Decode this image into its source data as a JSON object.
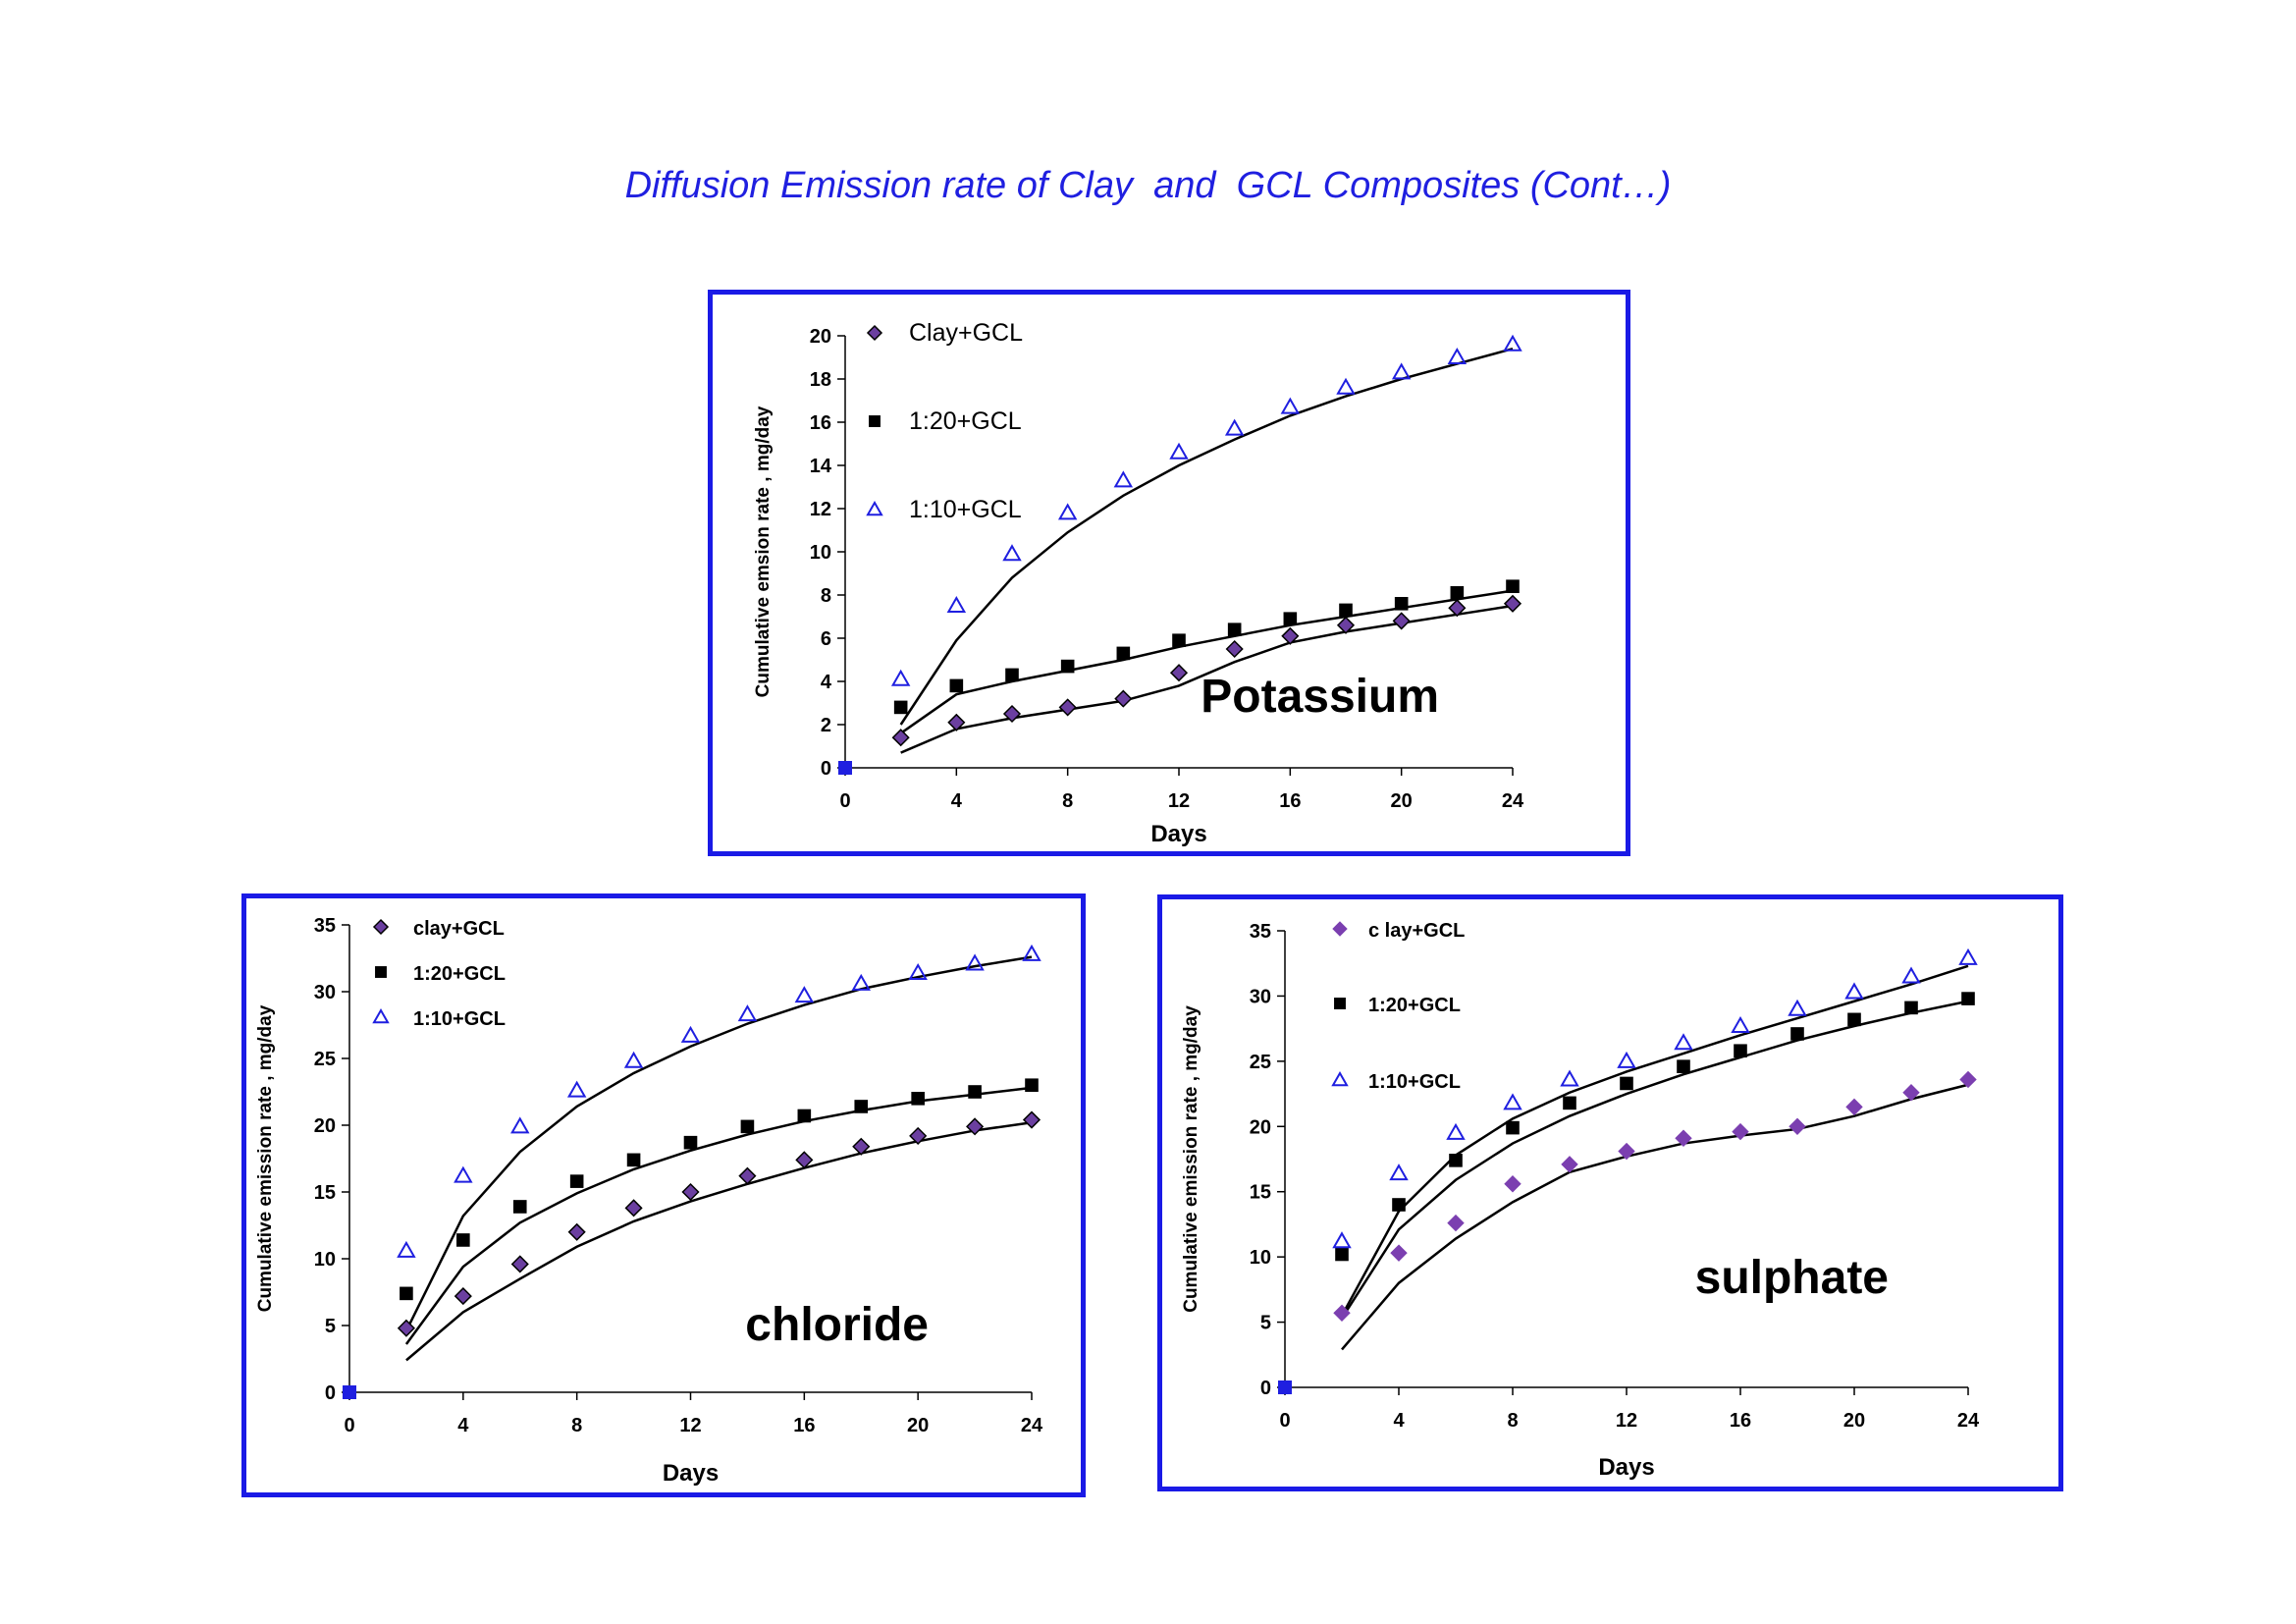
{
  "page": {
    "title": "Diffusion Emission rate of Clay  and  GCL Composites (Cont…)"
  },
  "colors": {
    "frame": "#1a1ae6",
    "clay": "#6b3fa0",
    "r120": "#000000",
    "r110": "#1f1fe0",
    "fit_line": "#000000"
  },
  "chart_data": [
    {
      "type": "scatter",
      "title": "Potassium",
      "xlabel": "Days",
      "ylabel": "Cumulative emsion rate , mg/day",
      "xlim": [
        0,
        24
      ],
      "ylim": [
        0,
        20
      ],
      "xticks": [
        0,
        4,
        8,
        12,
        16,
        20,
        24
      ],
      "yticks": [
        0,
        2,
        4,
        6,
        8,
        10,
        12,
        14,
        16,
        18,
        20
      ],
      "legend": "top-left, stacked",
      "series": [
        {
          "name": "Clay+GCL",
          "marker": "diamond",
          "color": "#6b3fa0",
          "x": [
            0,
            2,
            4,
            6,
            8,
            10,
            12,
            14,
            16,
            18,
            20,
            22,
            24
          ],
          "y": [
            0,
            1.4,
            2.1,
            2.5,
            2.8,
            3.2,
            4.4,
            5.5,
            6.1,
            6.6,
            6.8,
            7.4,
            7.6
          ],
          "fit": {
            "x": [
              2,
              4,
              6,
              8,
              10,
              12,
              14,
              16,
              18,
              20,
              22,
              24
            ],
            "y": [
              0.7,
              1.8,
              2.3,
              2.7,
              3.1,
              3.8,
              4.9,
              5.8,
              6.3,
              6.7,
              7.1,
              7.5
            ]
          }
        },
        {
          "name": "1:20+GCL",
          "marker": "square",
          "color": "#000000",
          "x": [
            0,
            2,
            4,
            6,
            8,
            10,
            12,
            14,
            16,
            18,
            20,
            22,
            24
          ],
          "y": [
            0,
            2.8,
            3.8,
            4.3,
            4.7,
            5.3,
            5.9,
            6.4,
            6.9,
            7.3,
            7.6,
            8.1,
            8.4
          ],
          "fit": {
            "x": [
              2,
              4,
              6,
              8,
              10,
              12,
              14,
              16,
              18,
              20,
              22,
              24
            ],
            "y": [
              1.6,
              3.4,
              4.0,
              4.5,
              5.0,
              5.6,
              6.1,
              6.6,
              7.0,
              7.4,
              7.8,
              8.2
            ]
          }
        },
        {
          "name": "1:10+GCL",
          "marker": "triangle",
          "color": "#1f1fe0",
          "x": [
            0,
            2,
            4,
            6,
            8,
            10,
            12,
            14,
            16,
            18,
            20,
            22,
            24
          ],
          "y": [
            0,
            4.1,
            7.5,
            9.9,
            11.8,
            13.3,
            14.6,
            15.7,
            16.7,
            17.6,
            18.3,
            19.0,
            19.6
          ],
          "fit": {
            "x": [
              2,
              4,
              6,
              8,
              10,
              12,
              14,
              16,
              18,
              20,
              22,
              24
            ],
            "y": [
              2.0,
              5.9,
              8.8,
              10.9,
              12.6,
              14.0,
              15.2,
              16.3,
              17.2,
              18.0,
              18.7,
              19.4
            ]
          }
        }
      ]
    },
    {
      "type": "scatter",
      "title": "chloride",
      "xlabel": "Days",
      "ylabel": "Cumulative emission rate , mg/day",
      "xlim": [
        0,
        24
      ],
      "ylim": [
        0,
        35
      ],
      "xticks": [
        0,
        4,
        8,
        12,
        16,
        20,
        24
      ],
      "yticks": [
        0,
        5,
        10,
        15,
        20,
        25,
        30,
        35
      ],
      "legend": "top-left, stacked",
      "series": [
        {
          "name": "clay+GCL",
          "marker": "diamond",
          "color": "#6b3fa0",
          "x": [
            0,
            2,
            4,
            6,
            8,
            10,
            12,
            14,
            16,
            18,
            20,
            22,
            24
          ],
          "y": [
            0,
            4.8,
            7.2,
            9.6,
            12.0,
            13.8,
            15.0,
            16.2,
            17.4,
            18.4,
            19.2,
            19.9,
            20.4
          ],
          "fit": {
            "x": [
              2,
              4,
              6,
              8,
              10,
              12,
              14,
              16,
              18,
              20,
              22,
              24
            ],
            "y": [
              2.4,
              6.0,
              8.5,
              10.9,
              12.8,
              14.3,
              15.6,
              16.8,
              17.9,
              18.8,
              19.6,
              20.2
            ]
          }
        },
        {
          "name": "1:20+GCL",
          "marker": "square",
          "color": "#000000",
          "x": [
            0,
            2,
            4,
            6,
            8,
            10,
            12,
            14,
            16,
            18,
            20,
            22,
            24
          ],
          "y": [
            0,
            7.4,
            11.4,
            13.9,
            15.8,
            17.4,
            18.7,
            19.9,
            20.7,
            21.4,
            22.0,
            22.5,
            23.0
          ],
          "fit": {
            "x": [
              2,
              4,
              6,
              8,
              10,
              12,
              14,
              16,
              18,
              20,
              22,
              24
            ],
            "y": [
              3.6,
              9.4,
              12.7,
              14.9,
              16.7,
              18.1,
              19.3,
              20.3,
              21.1,
              21.8,
              22.3,
              22.8
            ]
          }
        },
        {
          "name": "1:10+GCL",
          "marker": "triangle",
          "color": "#1f1fe0",
          "x": [
            0,
            2,
            4,
            6,
            8,
            10,
            12,
            14,
            16,
            18,
            20,
            22,
            24
          ],
          "y": [
            0,
            10.6,
            16.2,
            19.9,
            22.6,
            24.8,
            26.7,
            28.3,
            29.7,
            30.6,
            31.4,
            32.1,
            32.8
          ],
          "fit": {
            "x": [
              2,
              4,
              6,
              8,
              10,
              12,
              14,
              16,
              18,
              20,
              22,
              24
            ],
            "y": [
              4.6,
              13.2,
              18.0,
              21.4,
              23.9,
              25.9,
              27.6,
              29.0,
              30.2,
              31.1,
              31.9,
              32.6
            ]
          }
        }
      ]
    },
    {
      "type": "scatter",
      "title": "sulphate",
      "xlabel": "Days",
      "ylabel": "Cumulative emission rate , mg/day",
      "xlim": [
        0,
        24
      ],
      "ylim": [
        0,
        35
      ],
      "xticks": [
        0,
        4,
        8,
        12,
        16,
        20,
        24
      ],
      "yticks": [
        0,
        5,
        10,
        15,
        20,
        25,
        30,
        35
      ],
      "legend": "top-left, stacked",
      "series": [
        {
          "name": "c lay+GCL",
          "marker": "diamond-filled",
          "color": "#7b3fb0",
          "x": [
            0,
            2,
            4,
            6,
            8,
            10,
            12,
            14,
            16,
            18,
            20,
            22,
            24
          ],
          "y": [
            0,
            5.7,
            10.3,
            12.6,
            15.6,
            17.1,
            18.1,
            19.1,
            19.6,
            20.0,
            21.5,
            22.6,
            23.6
          ],
          "fit": {
            "x": [
              2,
              4,
              6,
              8,
              10,
              12,
              14,
              16,
              18,
              20,
              22,
              24
            ],
            "y": [
              2.9,
              8.0,
              11.4,
              14.2,
              16.5,
              17.7,
              18.7,
              19.3,
              19.8,
              20.8,
              22.1,
              23.2
            ]
          }
        },
        {
          "name": "1:20+GCL",
          "marker": "square",
          "color": "#000000",
          "x": [
            0,
            2,
            4,
            6,
            8,
            10,
            12,
            14,
            16,
            18,
            20,
            22,
            24
          ],
          "y": [
            0,
            10.2,
            14.0,
            17.4,
            19.9,
            21.8,
            23.3,
            24.6,
            25.8,
            27.1,
            28.2,
            29.1,
            29.8
          ],
          "fit": {
            "x": [
              2,
              4,
              6,
              8,
              10,
              12,
              14,
              16,
              18,
              20,
              22,
              24
            ],
            "y": [
              5.3,
              12.1,
              15.9,
              18.7,
              20.8,
              22.5,
              24.0,
              25.3,
              26.6,
              27.7,
              28.7,
              29.6
            ]
          }
        },
        {
          "name": "1:10+GCL",
          "marker": "triangle",
          "color": "#1f1fe0",
          "x": [
            0,
            2,
            4,
            6,
            8,
            10,
            12,
            14,
            16,
            18,
            20,
            22,
            24
          ],
          "y": [
            0,
            11.2,
            16.4,
            19.5,
            21.8,
            23.6,
            25.0,
            26.4,
            27.7,
            29.0,
            30.3,
            31.5,
            32.9
          ],
          "fit": {
            "x": [
              2,
              4,
              6,
              8,
              10,
              12,
              14,
              16,
              18,
              20,
              22,
              24
            ],
            "y": [
              5.5,
              13.5,
              17.8,
              20.6,
              22.6,
              24.2,
              25.6,
              27.0,
              28.3,
              29.6,
              30.9,
              32.3
            ]
          }
        }
      ]
    }
  ]
}
